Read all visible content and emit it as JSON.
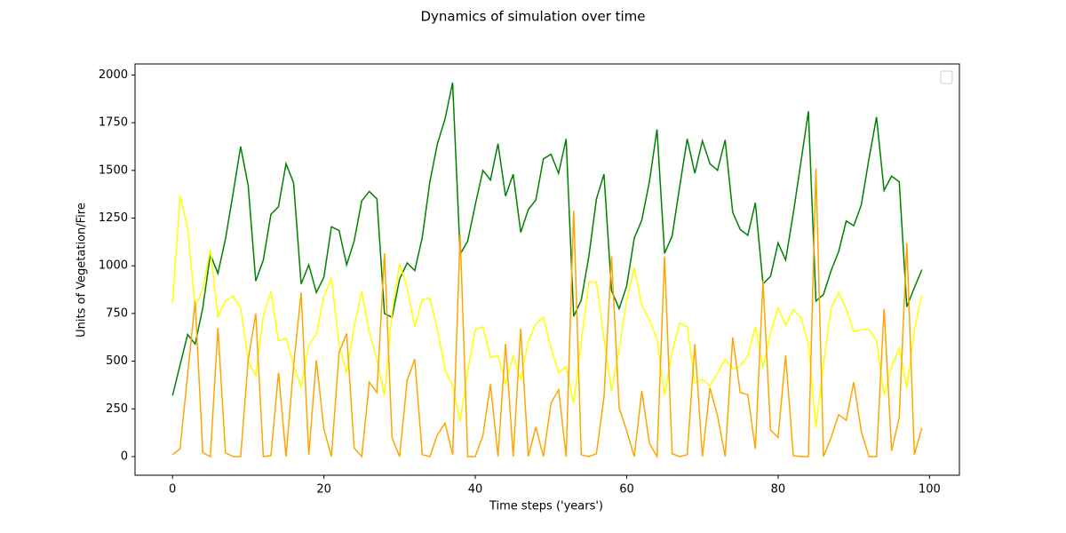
{
  "chart_data": {
    "type": "line",
    "title": "Dynamics of simulation over time",
    "x_label": "Time steps ('years')",
    "y_label": "Units of Vegetation/Fire",
    "x": [
      0,
      1,
      2,
      3,
      4,
      5,
      6,
      7,
      8,
      9,
      10,
      11,
      12,
      13,
      14,
      15,
      16,
      17,
      18,
      19,
      20,
      21,
      22,
      23,
      24,
      25,
      26,
      27,
      28,
      29,
      30,
      31,
      32,
      33,
      34,
      35,
      36,
      37,
      38,
      39,
      40,
      41,
      42,
      43,
      44,
      45,
      46,
      47,
      48,
      49,
      50,
      51,
      52,
      53,
      54,
      55,
      56,
      57,
      58,
      59,
      60,
      61,
      62,
      63,
      64,
      65,
      66,
      67,
      68,
      69,
      70,
      71,
      72,
      73,
      74,
      75,
      76,
      77,
      78,
      79,
      80,
      81,
      82,
      83,
      84,
      85,
      86,
      87,
      88,
      89,
      90,
      91,
      92,
      93,
      94,
      95,
      96,
      97,
      98,
      99
    ],
    "series": [
      {
        "color": "green",
        "values": [
          320,
          480,
          640,
          590,
          780,
          1060,
          960,
          1140,
          1380,
          1625,
          1420,
          920,
          1030,
          1270,
          1310,
          1535,
          1435,
          905,
          1005,
          860,
          940,
          1205,
          1185,
          1005,
          1130,
          1340,
          1390,
          1350,
          750,
          730,
          930,
          1015,
          975,
          1150,
          1440,
          1640,
          1770,
          1960,
          1060,
          1130,
          1320,
          1500,
          1450,
          1640,
          1365,
          1480,
          1175,
          1295,
          1345,
          1560,
          1585,
          1485,
          1665,
          735,
          820,
          1050,
          1350,
          1480,
          870,
          775,
          895,
          1145,
          1240,
          1440,
          1715,
          1065,
          1155,
          1415,
          1665,
          1485,
          1655,
          1535,
          1500,
          1660,
          1280,
          1190,
          1160,
          1330,
          905,
          945,
          1120,
          1030,
          1275,
          1540,
          1810,
          815,
          850,
          975,
          1075,
          1235,
          1210,
          1320,
          1560,
          1780,
          1395,
          1470,
          1440,
          785,
          885,
          980
        ]
      },
      {
        "color": "yellow",
        "values": [
          805,
          1365,
          1200,
          780,
          880,
          1085,
          735,
          815,
          840,
          780,
          500,
          425,
          735,
          865,
          605,
          620,
          480,
          365,
          585,
          640,
          840,
          935,
          585,
          440,
          680,
          865,
          655,
          505,
          320,
          755,
          1010,
          885,
          680,
          825,
          830,
          665,
          455,
          370,
          185,
          450,
          665,
          680,
          520,
          530,
          380,
          525,
          405,
          605,
          695,
          730,
          570,
          440,
          470,
          280,
          600,
          915,
          915,
          620,
          345,
          560,
          820,
          990,
          790,
          720,
          615,
          320,
          550,
          700,
          680,
          385,
          405,
          370,
          435,
          510,
          460,
          475,
          525,
          680,
          465,
          650,
          780,
          690,
          770,
          730,
          590,
          150,
          485,
          780,
          860,
          775,
          655,
          665,
          665,
          610,
          320,
          470,
          570,
          360,
          660,
          850
        ]
      },
      {
        "color": "orange",
        "values": [
          10,
          40,
          430,
          815,
          20,
          0,
          675,
          20,
          0,
          0,
          505,
          750,
          0,
          5,
          440,
          0,
          475,
          860,
          10,
          505,
          145,
          0,
          545,
          645,
          45,
          0,
          390,
          335,
          1065,
          100,
          0,
          400,
          510,
          10,
          0,
          115,
          175,
          10,
          1165,
          0,
          0,
          110,
          380,
          0,
          590,
          0,
          670,
          0,
          155,
          0,
          280,
          350,
          0,
          1290,
          10,
          0,
          15,
          310,
          1050,
          255,
          135,
          0,
          345,
          70,
          0,
          1050,
          15,
          0,
          10,
          590,
          0,
          360,
          215,
          0,
          625,
          335,
          325,
          40,
          920,
          140,
          100,
          530,
          5,
          0,
          0,
          1510,
          0,
          100,
          220,
          190,
          390,
          130,
          0,
          0,
          775,
          30,
          205,
          1120,
          10,
          150
        ]
      }
    ],
    "xlim": [
      -4.95,
      103.95
    ],
    "ylim": [
      -98,
      2058
    ],
    "xticks": [
      0,
      20,
      40,
      60,
      80,
      100
    ],
    "yticks": [
      0,
      250,
      500,
      750,
      1000,
      1250,
      1500,
      1750,
      2000
    ]
  }
}
